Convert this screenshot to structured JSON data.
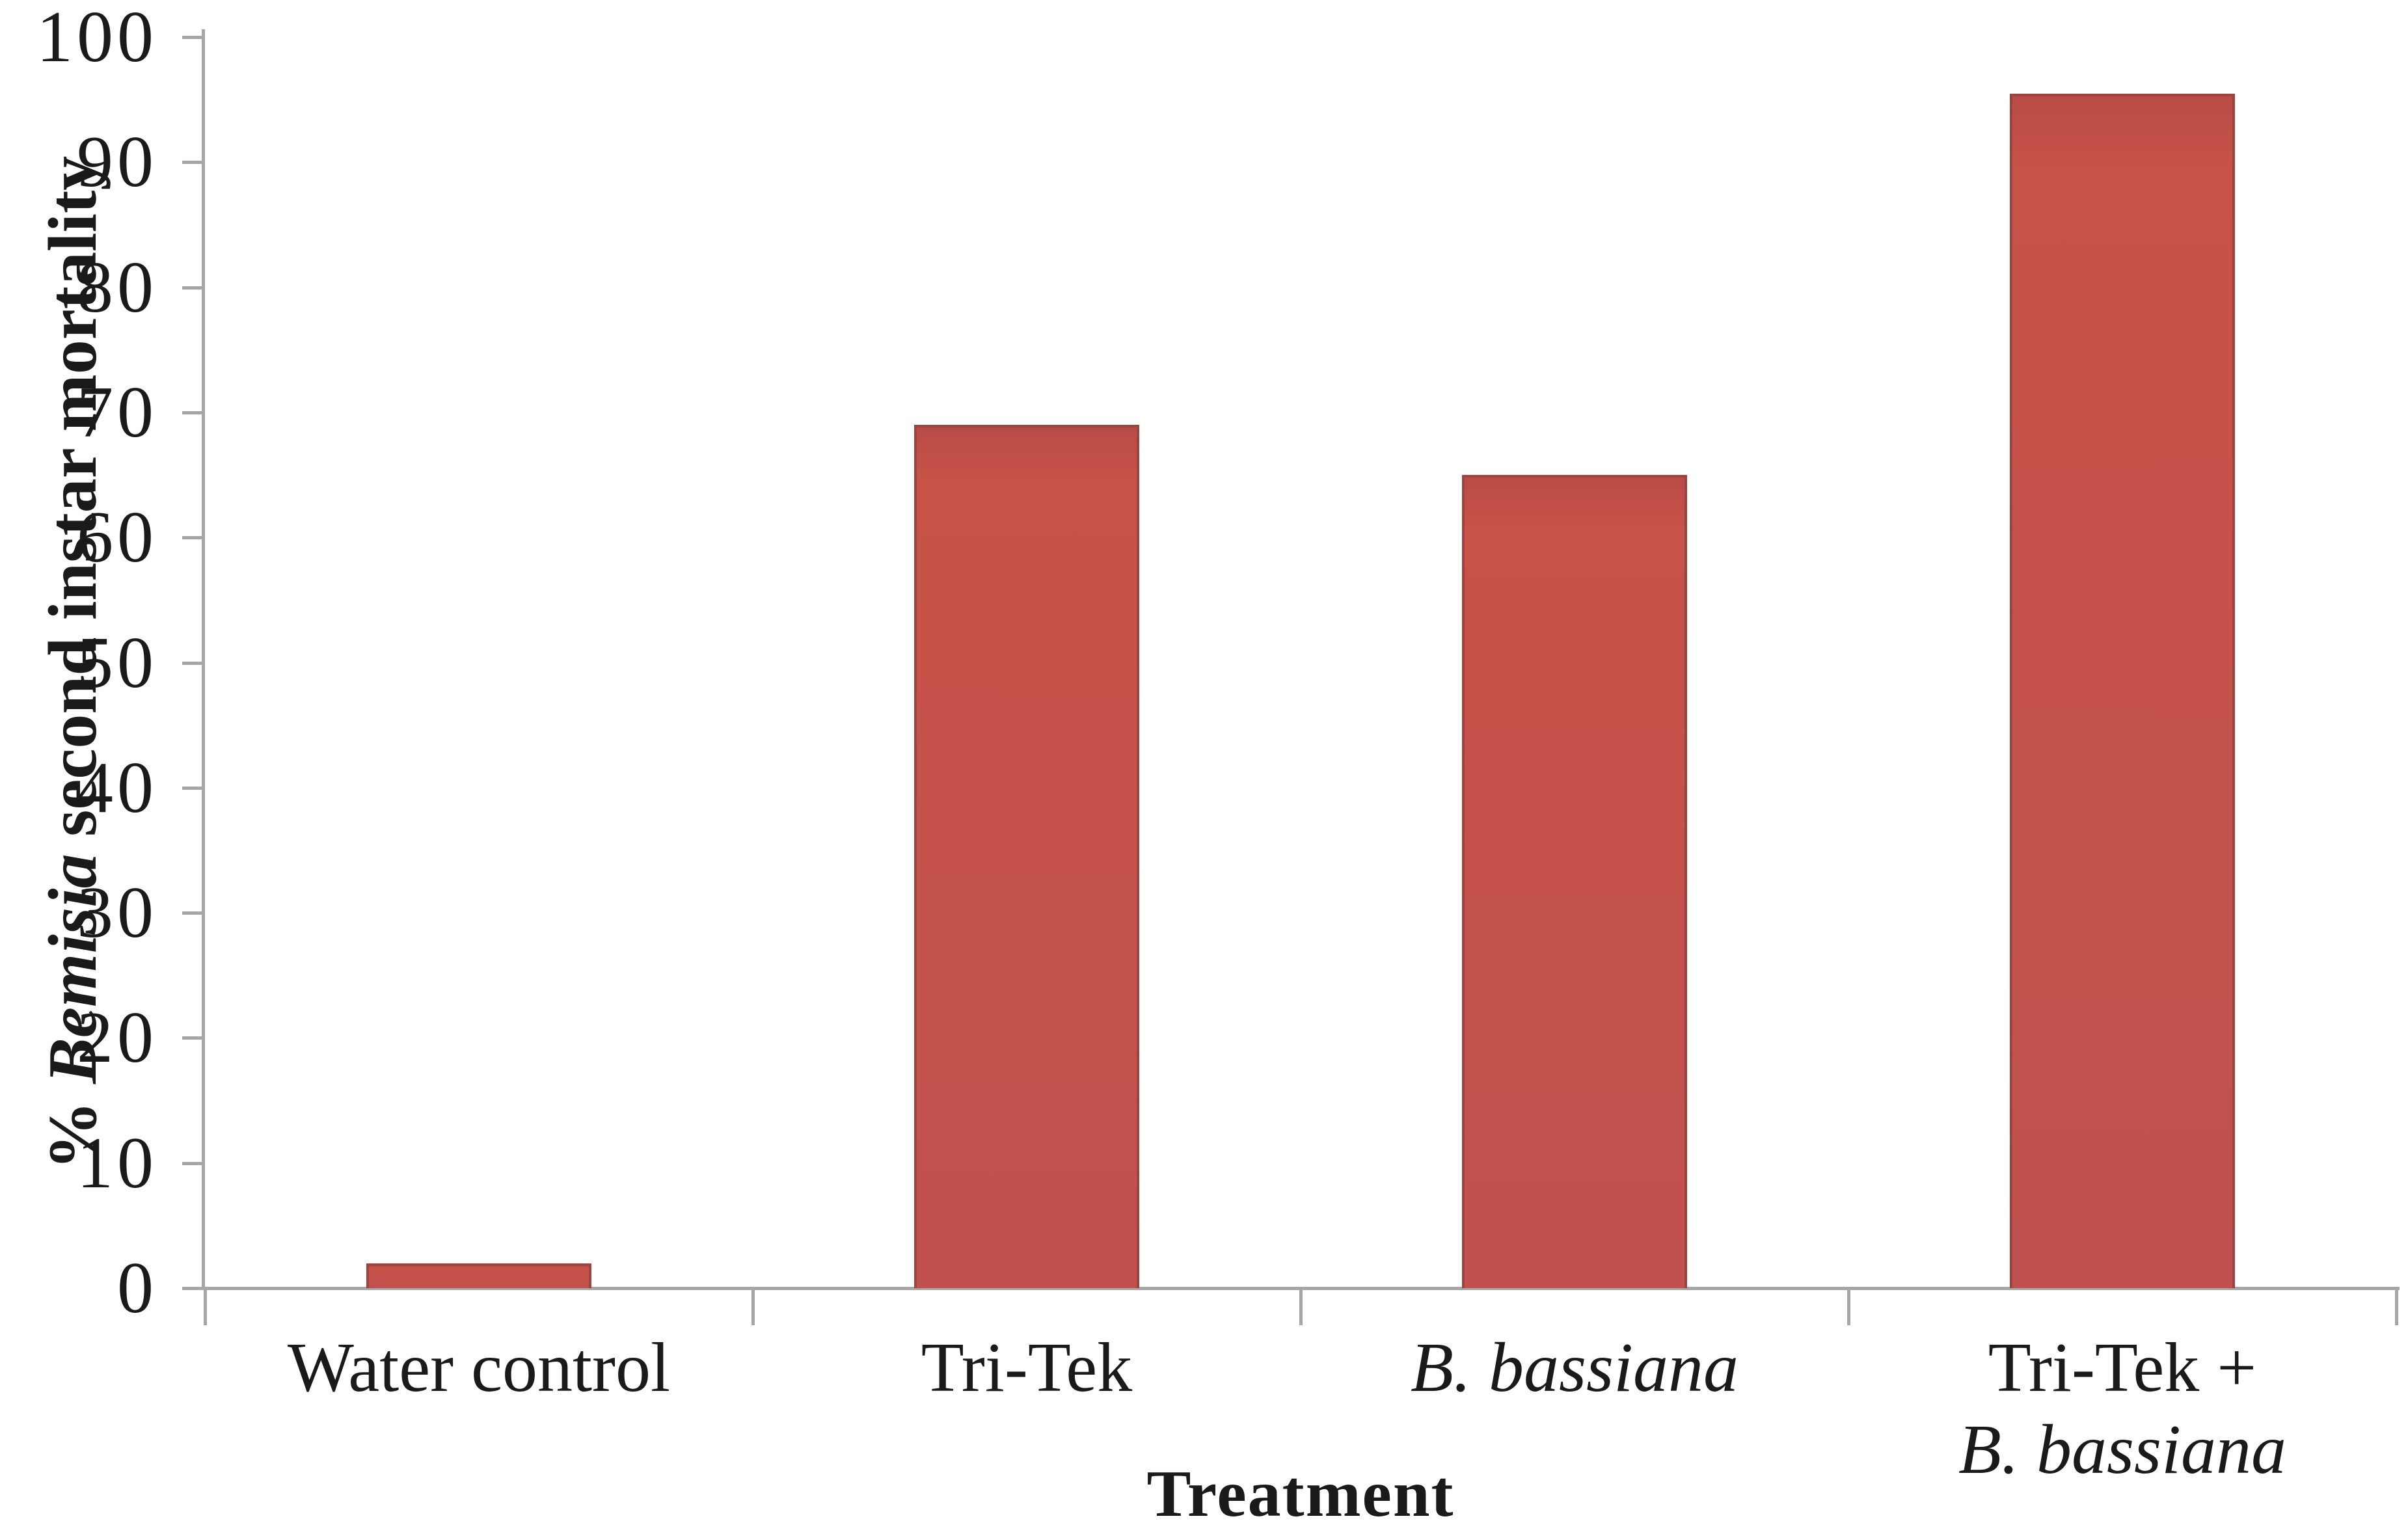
{
  "figure": {
    "background": "#ffffff",
    "text_color": "#1a1a1a",
    "axis_color": "#a6a6a6"
  },
  "chart_data": {
    "type": "bar",
    "title": "",
    "xlabel": "Treatment",
    "ylabel": "% Bemisia second instar mortality",
    "ylabel_parts": [
      {
        "text": "% ",
        "italic": false
      },
      {
        "text": "Bemisia",
        "italic": true
      },
      {
        "text": " second instar mortality",
        "italic": false
      }
    ],
    "categories": [
      "Water control",
      "Tri-Tek",
      "B. bassiana",
      "Tri-Tek + B. bassiana"
    ],
    "category_labels": [
      {
        "lines": [
          {
            "text": "Water control",
            "italic": false
          }
        ]
      },
      {
        "lines": [
          {
            "text": "Tri-Tek",
            "italic": false
          }
        ]
      },
      {
        "lines": [
          {
            "text": "B. bassiana",
            "italic": true
          }
        ]
      },
      {
        "lines": [
          {
            "text": "Tri-Tek +",
            "italic": false
          },
          {
            "text": "B. bassiana",
            "italic": true
          }
        ]
      }
    ],
    "values": [
      2,
      69,
      65,
      95.5
    ],
    "ylim": [
      0,
      100
    ],
    "yticks": [
      0,
      10,
      20,
      30,
      40,
      50,
      60,
      70,
      80,
      90,
      100
    ],
    "bar_color": "#c1514e",
    "bar_border_color": "#9c4440",
    "axis_color": "#a6a6a6",
    "grid": false,
    "legend": false
  }
}
